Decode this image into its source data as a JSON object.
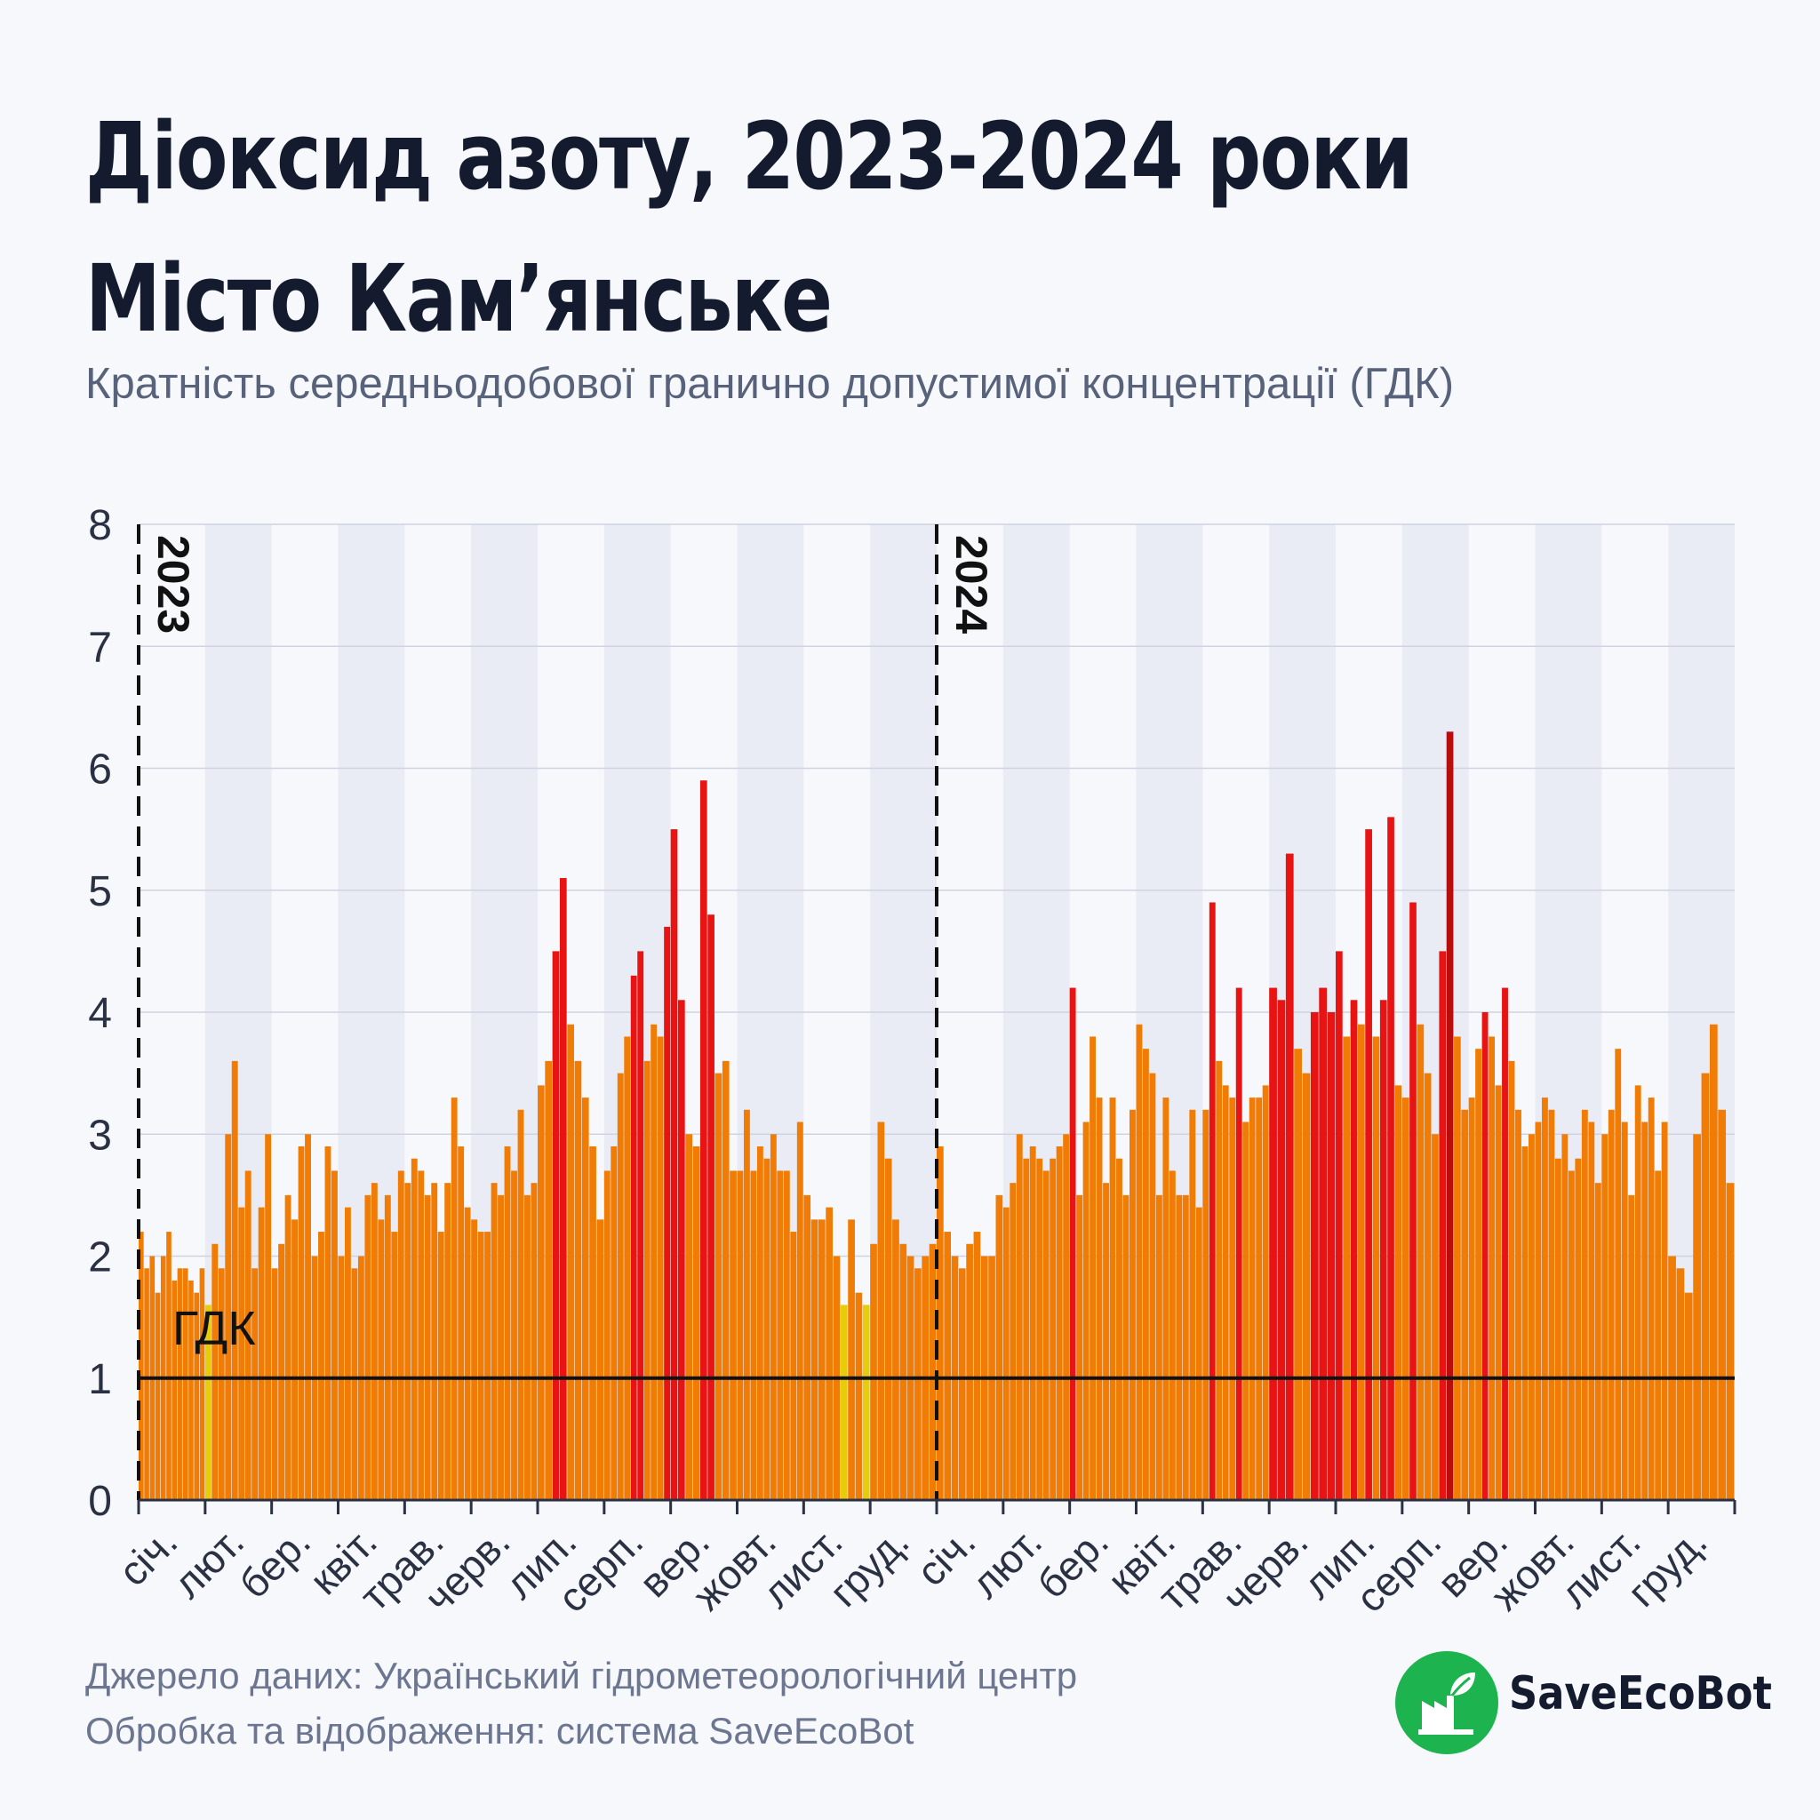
{
  "title_line1": "Діоксид азоту, 2023-2024 роки",
  "title_line2": "Місто Кам’янське",
  "subtitle": "Кратність середньодобової гранично допустимої концентрації (ГДК)",
  "footer": {
    "source": "Джерело даних: Український гідрометеорологічний центр",
    "processing": "Обробка та відображення: система SaveEcoBot"
  },
  "logo": {
    "text": "SaveEcoBot",
    "icon": "factory-leaf-icon"
  },
  "colors": {
    "below_or_near_limit": "#e6cc0a",
    "above_limit": "#f07c05",
    "high": "#e81414",
    "very_high": "#b70d0d",
    "limit_line": "#111111",
    "band": "#e9ecf4",
    "logo": "#1db34f"
  },
  "chart_data": {
    "type": "bar",
    "ylim": [
      0,
      8
    ],
    "yticks": [
      0,
      1,
      2,
      3,
      4,
      5,
      6,
      7,
      8
    ],
    "grid": true,
    "reference_line": {
      "value": 1,
      "label": "ГДК"
    },
    "year_markers": [
      "2023",
      "2024"
    ],
    "months": [
      "січ.",
      "лют.",
      "бер.",
      "квіт.",
      "трав.",
      "черв.",
      "лип.",
      "серп.",
      "вер.",
      "жовт.",
      "лист.",
      "груд."
    ],
    "color_thresholds": [
      {
        "min": 0,
        "max": 1.7,
        "color": "#e6cc0a"
      },
      {
        "min": 1.7,
        "max": 4,
        "color": "#f07c05"
      },
      {
        "min": 4,
        "max": 6,
        "color": "#e81414"
      },
      {
        "min": 6,
        "max": 8,
        "color": "#b70d0d"
      }
    ],
    "series": [
      {
        "year": "2023",
        "monthly_values": [
          [
            2.2,
            1.9,
            2.0,
            1.7,
            2.0,
            2.2,
            1.8,
            1.9,
            1.9,
            1.8,
            1.7,
            1.9
          ],
          [
            1.6,
            2.1,
            1.9,
            3.0,
            3.6,
            2.4,
            2.7,
            1.9,
            2.4,
            3.0
          ],
          [
            1.9,
            2.1,
            2.5,
            2.3,
            2.9,
            3.0,
            2.0,
            2.2,
            2.9,
            2.7
          ],
          [
            2.0,
            2.4,
            1.9,
            2.0,
            2.5,
            2.6,
            2.3,
            2.5,
            2.2,
            2.7
          ],
          [
            2.6,
            2.8,
            2.7,
            2.5,
            2.6,
            2.2,
            2.6,
            3.3,
            2.9,
            2.4
          ],
          [
            2.3,
            2.2,
            2.2,
            2.6,
            2.5,
            2.9,
            2.7,
            3.2,
            2.5,
            2.6
          ],
          [
            3.4,
            3.6,
            4.5,
            5.1,
            3.9,
            3.6,
            3.3,
            2.9,
            2.3
          ],
          [
            2.7,
            2.9,
            3.5,
            3.8,
            4.3,
            4.5,
            3.6,
            3.9,
            3.8,
            4.7
          ],
          [
            5.5,
            4.1,
            3.0,
            2.9,
            5.9,
            4.8,
            3.5,
            3.6,
            2.7
          ],
          [
            2.7,
            3.2,
            2.7,
            2.9,
            2.8,
            3.0,
            2.7,
            2.7,
            2.2,
            3.1
          ],
          [
            2.5,
            2.3,
            2.3,
            2.4,
            2.0,
            1.6,
            2.3,
            1.7,
            1.6
          ],
          [
            2.1,
            3.1,
            2.8,
            2.3,
            2.1,
            2.0,
            1.9,
            2.0,
            2.1
          ]
        ]
      },
      {
        "year": "2024",
        "monthly_values": [
          [
            2.9,
            2.2,
            2.0,
            1.9,
            2.1,
            2.2,
            2.0,
            2.0,
            2.5
          ],
          [
            2.4,
            2.6,
            3.0,
            2.8,
            2.9,
            2.8,
            2.7,
            2.8,
            2.9,
            3.0
          ],
          [
            4.2,
            2.5,
            3.1,
            3.8,
            3.3,
            2.6,
            3.3,
            2.8,
            2.5,
            3.2
          ],
          [
            3.9,
            3.7,
            3.5,
            2.5,
            3.3,
            2.7,
            2.5,
            2.5,
            3.2,
            2.4
          ],
          [
            3.2,
            4.9,
            3.6,
            3.4,
            3.3,
            4.2,
            3.1,
            3.3,
            3.3,
            3.4
          ],
          [
            4.2,
            4.1,
            5.3,
            3.7,
            3.5,
            4.0,
            4.2,
            4.0
          ],
          [
            4.5,
            3.8,
            4.1,
            3.9,
            5.5,
            3.8,
            4.1,
            5.6,
            3.4
          ],
          [
            3.3,
            4.9,
            3.9,
            3.5,
            3.0,
            4.5,
            6.3,
            3.8,
            3.2
          ],
          [
            3.3,
            3.7,
            4.0,
            3.8,
            3.4,
            4.2,
            3.6,
            3.2,
            2.9,
            3.0
          ],
          [
            3.1,
            3.3,
            3.2,
            2.8,
            3.0,
            2.7,
            2.8,
            3.2,
            3.1,
            2.6
          ],
          [
            3.0,
            3.2,
            3.7,
            3.1,
            2.5,
            3.4,
            3.1,
            3.3,
            2.7,
            3.1
          ],
          [
            2.0,
            1.9,
            1.7,
            3.0,
            3.5,
            3.9,
            3.2,
            2.6
          ]
        ]
      }
    ]
  }
}
